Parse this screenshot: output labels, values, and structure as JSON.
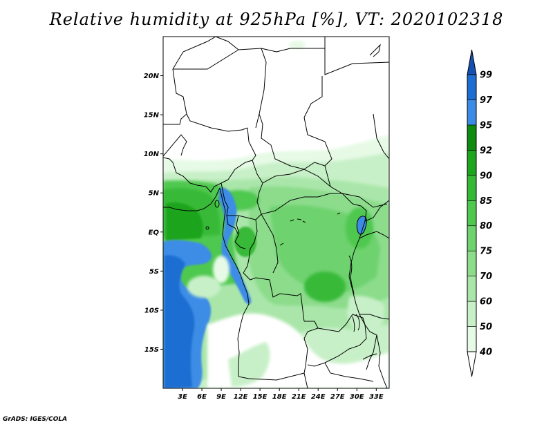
{
  "title": "Relative humidity at 925hPa [%], VT: 2020102318",
  "credit": "GrADS: IGES/COLA",
  "map": {
    "lat_range": [
      -20,
      25
    ],
    "lon_range": [
      0,
      35
    ],
    "lat_ticks": [
      {
        "value": 20,
        "label": "20N"
      },
      {
        "value": 15,
        "label": "15N"
      },
      {
        "value": 10,
        "label": "10N"
      },
      {
        "value": 5,
        "label": "5N"
      },
      {
        "value": 0,
        "label": "EQ"
      },
      {
        "value": -5,
        "label": "5S"
      },
      {
        "value": -10,
        "label": "10S"
      },
      {
        "value": -15,
        "label": "15S"
      }
    ],
    "lon_ticks": [
      {
        "value": 3,
        "label": "3E"
      },
      {
        "value": 6,
        "label": "6E"
      },
      {
        "value": 9,
        "label": "9E"
      },
      {
        "value": 12,
        "label": "12E"
      },
      {
        "value": 15,
        "label": "15E"
      },
      {
        "value": 18,
        "label": "18E"
      },
      {
        "value": 21,
        "label": "21E"
      },
      {
        "value": 24,
        "label": "24E"
      },
      {
        "value": 27,
        "label": "27E"
      },
      {
        "value": 30,
        "label": "30E"
      },
      {
        "value": 33,
        "label": "33E"
      }
    ]
  },
  "colorbar": {
    "levels": [
      {
        "label": "40",
        "color": "#e6fae6"
      },
      {
        "label": "50",
        "color": "#c8f0c8"
      },
      {
        "label": "60",
        "color": "#aae6aa"
      },
      {
        "label": "70",
        "color": "#8cdc8c"
      },
      {
        "label": "75",
        "color": "#6ed26e"
      },
      {
        "label": "80",
        "color": "#50c850"
      },
      {
        "label": "85",
        "color": "#37b937"
      },
      {
        "label": "90",
        "color": "#1ea51e"
      },
      {
        "label": "92",
        "color": "#0f8c0f"
      },
      {
        "label": "95",
        "color": "#3c8ce6"
      },
      {
        "label": "97",
        "color": "#1e6ed2"
      },
      {
        "label": "99",
        "color": "#1450b4"
      }
    ],
    "below_color": "#ffffff",
    "top_color": "#1450b4"
  }
}
